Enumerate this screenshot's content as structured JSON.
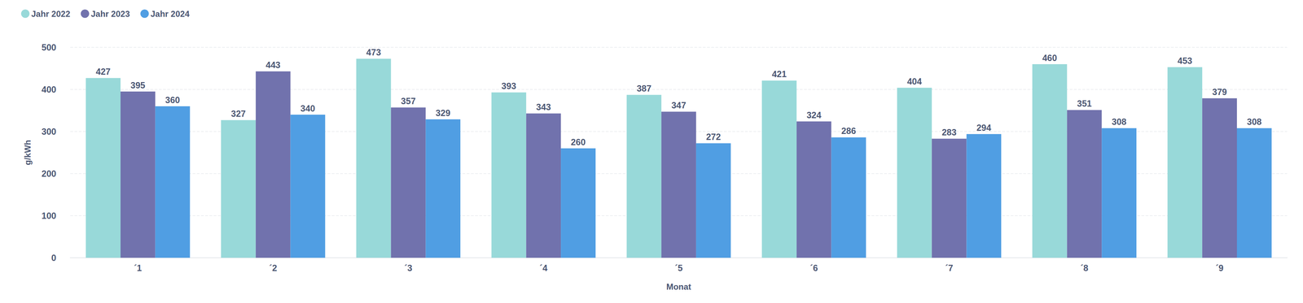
{
  "chart_data": {
    "type": "bar",
    "x_label": "Monat",
    "y_label": "g/kWh",
    "categories": [
      "´1",
      "´2",
      "´3",
      "´4",
      "´5",
      "´6",
      "´7",
      "´8",
      "´9"
    ],
    "series": [
      {
        "name": "Jahr 2022",
        "color": "#98d9d9",
        "values": [
          427,
          327,
          473,
          393,
          387,
          421,
          404,
          460,
          453
        ]
      },
      {
        "name": "Jahr 2023",
        "color": "#7172ad",
        "values": [
          395,
          443,
          357,
          343,
          347,
          324,
          283,
          351,
          379
        ]
      },
      {
        "name": "Jahr 2024",
        "color": "#509ee3",
        "values": [
          360,
          340,
          329,
          260,
          272,
          286,
          294,
          308,
          308
        ]
      }
    ],
    "ylim": [
      0,
      500
    ],
    "yticks": [
      0,
      100,
      200,
      300,
      400,
      500
    ],
    "grid": true,
    "legend": "top-left",
    "data_labels": true
  }
}
